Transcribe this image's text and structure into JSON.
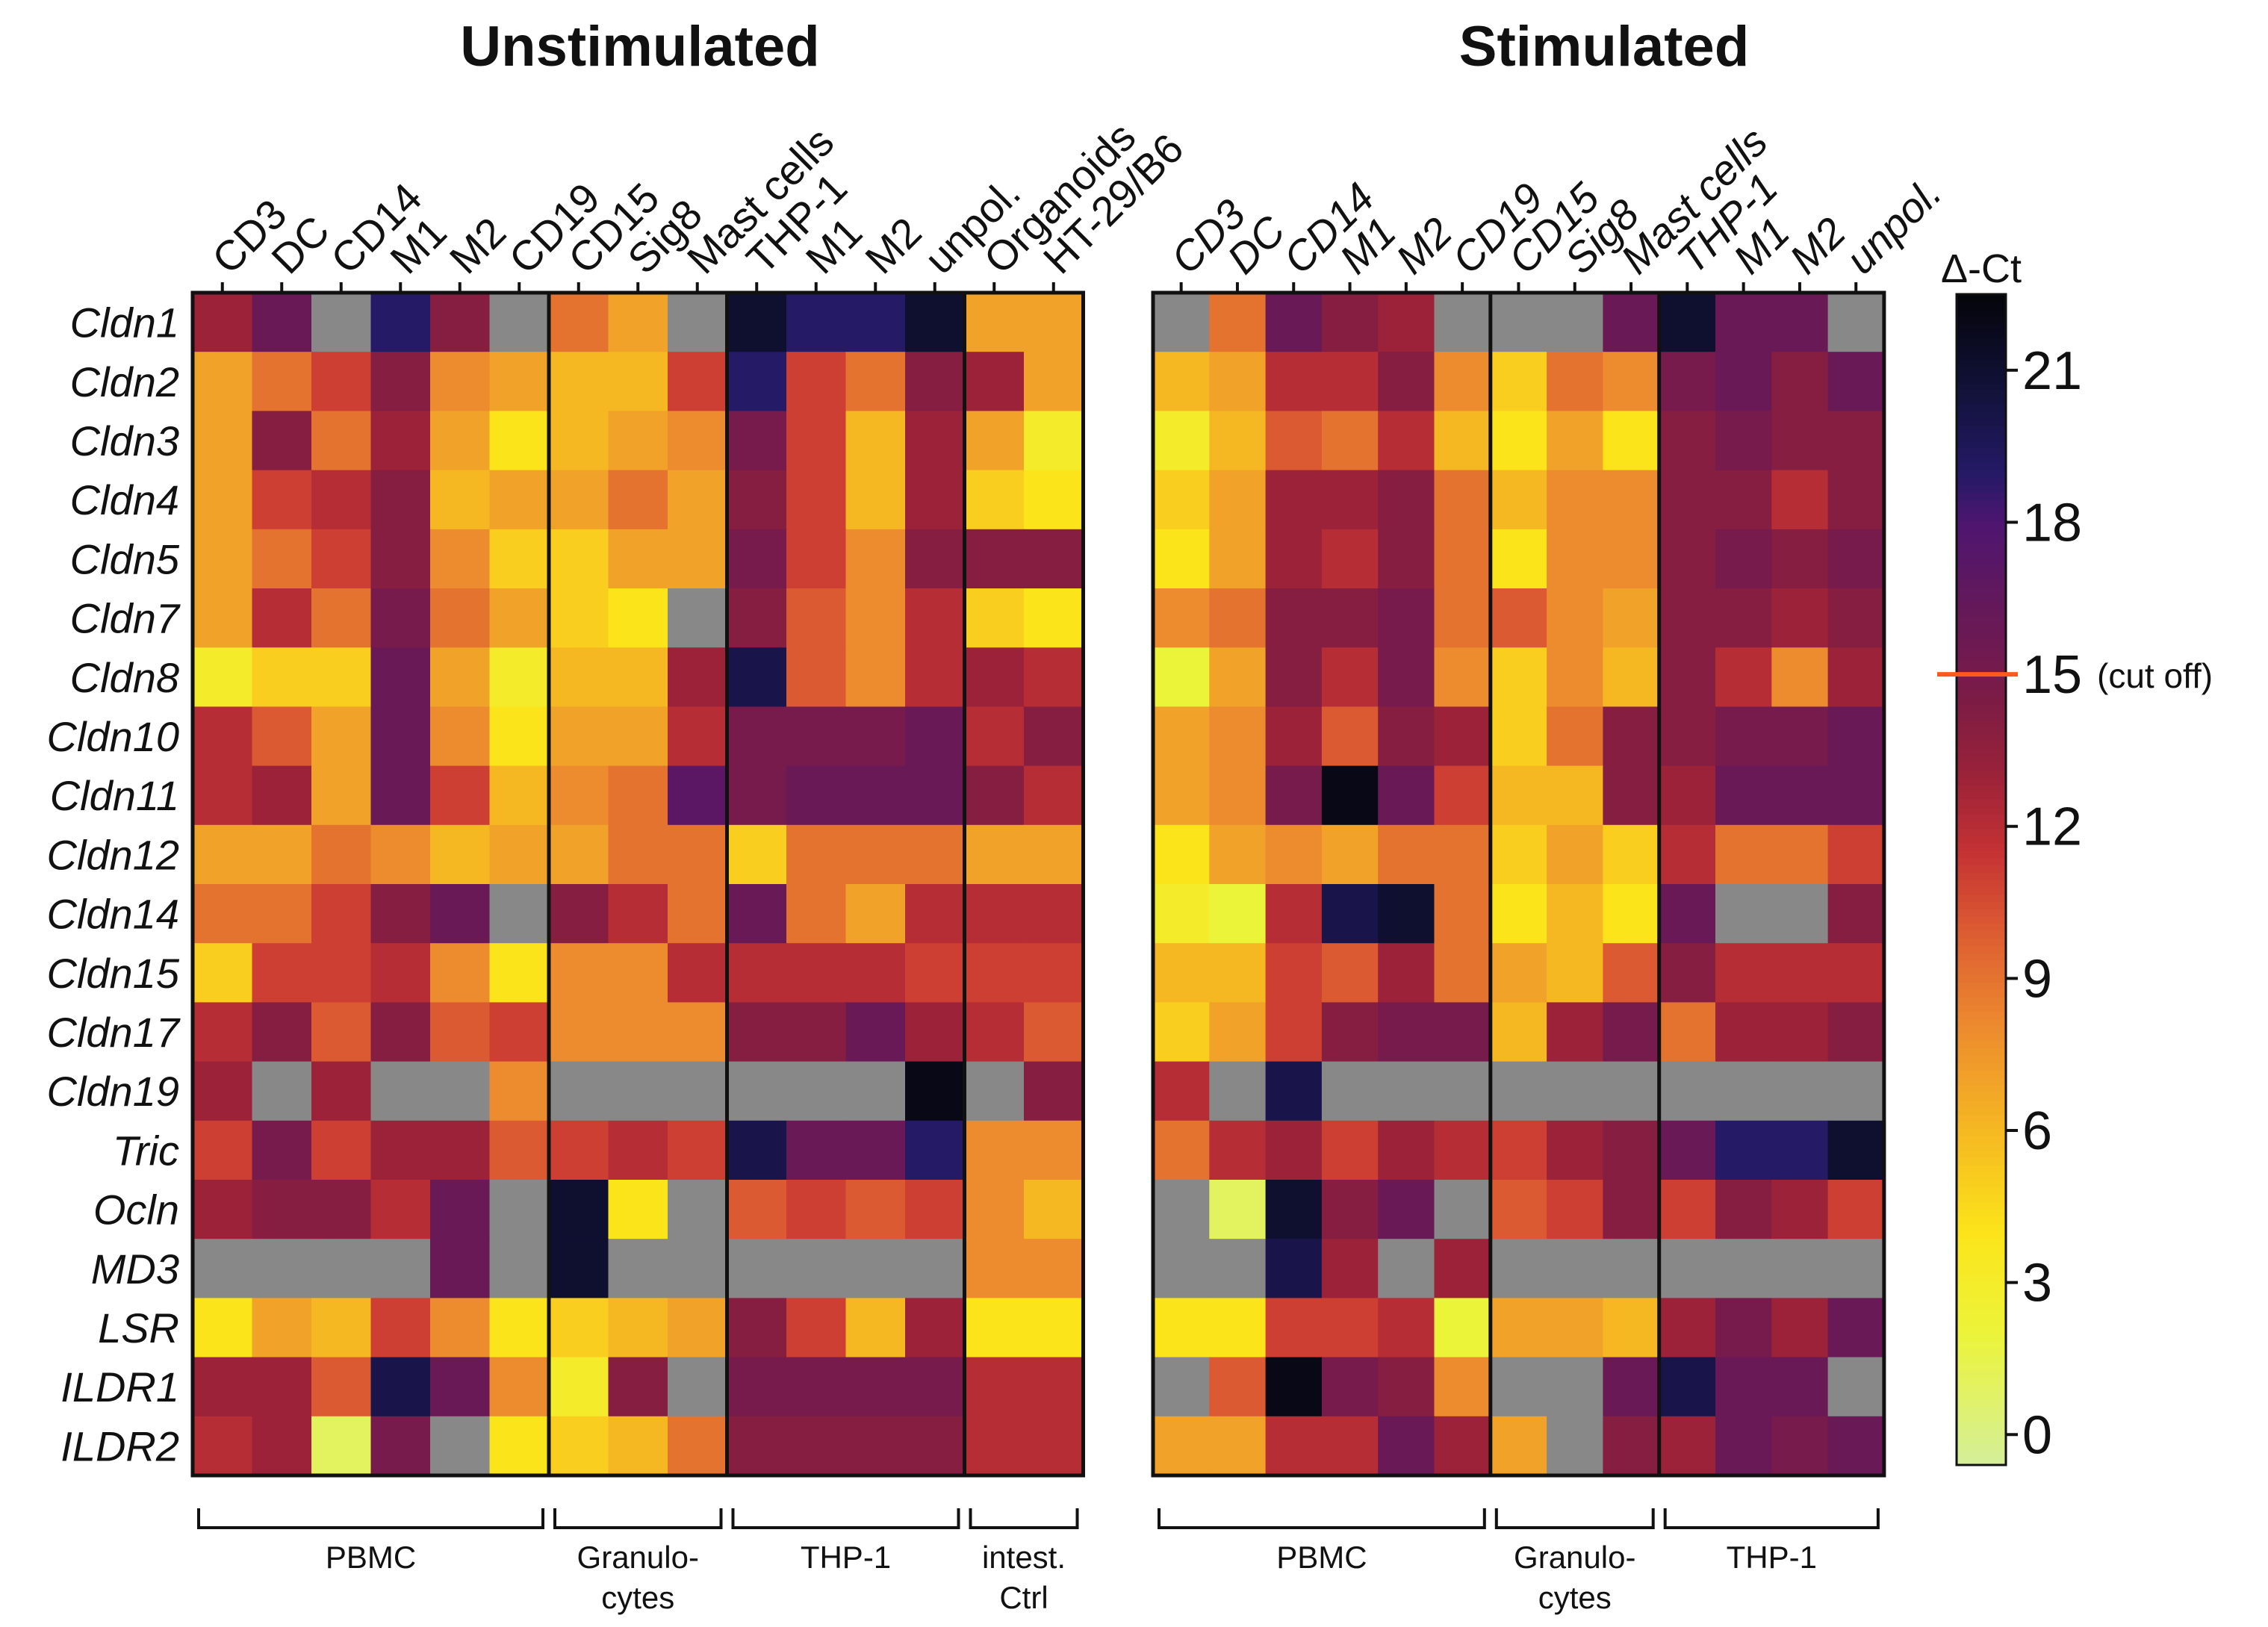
{
  "chart_data": {
    "type": "heatmap",
    "rows": [
      "Cldn1",
      "Cldn2",
      "Cldn3",
      "Cldn4",
      "Cldn5",
      "Cldn7",
      "Cldn8",
      "Cldn10",
      "Cldn11",
      "Cldn12",
      "Cldn14",
      "Cldn15",
      "Cldn17",
      "Cldn19",
      "Tric",
      "Ocln",
      "MD3",
      "LSR",
      "ILDR1",
      "ILDR2"
    ],
    "panels": [
      {
        "title": "Unstimulated",
        "columns": [
          "CD3",
          "DC",
          "CD14",
          "M1",
          "M2",
          "CD19",
          "CD15",
          "Sig8",
          "Mast cells",
          "THP-1",
          "M1",
          "M2",
          "unpol.",
          "Organoids",
          "HT-29/B6"
        ],
        "groups": [
          {
            "label": "PBMC",
            "span": [
              0,
              5
            ]
          },
          {
            "label_lines": [
              "Granulo-",
              "cytes"
            ],
            "span": [
              6,
              8
            ]
          },
          {
            "label": "THP-1",
            "span": [
              9,
              12
            ]
          },
          {
            "label_lines": [
              "intest.",
              "Ctrl"
            ],
            "span": [
              13,
              14
            ]
          }
        ],
        "values": [
          [
            13,
            16,
            null,
            19,
            14,
            null,
            9,
            7,
            null,
            21,
            19,
            19,
            21,
            7,
            7
          ],
          [
            7,
            9,
            11,
            14,
            8,
            7,
            6,
            6,
            11,
            19,
            11,
            9,
            14,
            13,
            7
          ],
          [
            7,
            14,
            9,
            13,
            7,
            4,
            6,
            7,
            8,
            15,
            11,
            6,
            13,
            7,
            3
          ],
          [
            7,
            11,
            12,
            14,
            6,
            7,
            7,
            9,
            7,
            14,
            11,
            6,
            13,
            5,
            4
          ],
          [
            7,
            9,
            11,
            14,
            8,
            5,
            5,
            7,
            7,
            15,
            11,
            8,
            14,
            14,
            14
          ],
          [
            7,
            12,
            9,
            15,
            9,
            7,
            5,
            4,
            null,
            14,
            10,
            8,
            12,
            5,
            4
          ],
          [
            3,
            5,
            5,
            16,
            7,
            3,
            6,
            6,
            13,
            20,
            10,
            8,
            12,
            13,
            12
          ],
          [
            12,
            10,
            7,
            16,
            8,
            4,
            7,
            7,
            12,
            15,
            15,
            15,
            16,
            12,
            14
          ],
          [
            12,
            13,
            7,
            16,
            11,
            6,
            8,
            9,
            17,
            15,
            16,
            16,
            16,
            14,
            12
          ],
          [
            7,
            7,
            9,
            8,
            6,
            7,
            7,
            9,
            9,
            5,
            9,
            9,
            9,
            7,
            7
          ],
          [
            9,
            9,
            11,
            14,
            16,
            null,
            14,
            12,
            9,
            16,
            9,
            7,
            12,
            12,
            12
          ],
          [
            5,
            11,
            11,
            12,
            8,
            4,
            8,
            8,
            12,
            12,
            12,
            12,
            11,
            11,
            11
          ],
          [
            12,
            14,
            10,
            14,
            10,
            11,
            8,
            8,
            8,
            14,
            14,
            16,
            13,
            12,
            10
          ],
          [
            13,
            null,
            13,
            null,
            null,
            8,
            null,
            null,
            null,
            null,
            null,
            null,
            22,
            null,
            14
          ],
          [
            11,
            15,
            11,
            13,
            13,
            10,
            11,
            12,
            11,
            20,
            16,
            16,
            19,
            8,
            8
          ],
          [
            13,
            14,
            14,
            12,
            16,
            null,
            21,
            4,
            null,
            10,
            11,
            10,
            11,
            8,
            6
          ],
          [
            null,
            null,
            null,
            null,
            16,
            null,
            21,
            null,
            null,
            null,
            null,
            null,
            null,
            8,
            8
          ],
          [
            4,
            7,
            6,
            11,
            8,
            4,
            5,
            6,
            7,
            14,
            11,
            6,
            13,
            4,
            4
          ],
          [
            13,
            13,
            10,
            20,
            16,
            8,
            3,
            14,
            null,
            15,
            15,
            15,
            15,
            12,
            12
          ],
          [
            12,
            13,
            1,
            15,
            null,
            4,
            5,
            6,
            9,
            14,
            14,
            14,
            14,
            12,
            12
          ]
        ]
      },
      {
        "title": "Stimulated",
        "columns": [
          "CD3",
          "DC",
          "CD14",
          "M1",
          "M2",
          "CD19",
          "CD15",
          "Sig8",
          "Mast cells",
          "THP-1",
          "M1",
          "M2",
          "unpol."
        ],
        "groups": [
          {
            "label": "PBMC",
            "span": [
              0,
              5
            ]
          },
          {
            "label_lines": [
              "Granulo-",
              "cytes"
            ],
            "span": [
              6,
              8
            ]
          },
          {
            "label": "THP-1",
            "span": [
              9,
              12
            ]
          }
        ],
        "values": [
          [
            null,
            9,
            16,
            14,
            13,
            null,
            null,
            null,
            16,
            21,
            16,
            16,
            null
          ],
          [
            6,
            7,
            12,
            12,
            14,
            8,
            5,
            9,
            8,
            15,
            16,
            14,
            16
          ],
          [
            3,
            6,
            10,
            9,
            12,
            6,
            4,
            7,
            4,
            14,
            15,
            14,
            14
          ],
          [
            5,
            7,
            13,
            13,
            14,
            9,
            6,
            8,
            8,
            14,
            14,
            12,
            14
          ],
          [
            4,
            7,
            13,
            12,
            14,
            9,
            4,
            8,
            8,
            14,
            15,
            14,
            15
          ],
          [
            8,
            9,
            14,
            14,
            15,
            9,
            10,
            8,
            7,
            14,
            14,
            13,
            14
          ],
          [
            2,
            7,
            14,
            12,
            15,
            8,
            5,
            8,
            6,
            14,
            12,
            8,
            13
          ],
          [
            7,
            8,
            13,
            10,
            14,
            13,
            5,
            9,
            14,
            14,
            15,
            15,
            16
          ],
          [
            7,
            8,
            15,
            22,
            16,
            11,
            6,
            6,
            14,
            13,
            16,
            16,
            16
          ],
          [
            4,
            7,
            8,
            7,
            9,
            9,
            5,
            7,
            5,
            12,
            9,
            9,
            11
          ],
          [
            3,
            2,
            12,
            20,
            21,
            9,
            4,
            6,
            4,
            16,
            null,
            null,
            14
          ],
          [
            6,
            6,
            11,
            10,
            13,
            9,
            7,
            6,
            10,
            14,
            12,
            12,
            12
          ],
          [
            5,
            7,
            11,
            14,
            15,
            15,
            6,
            13,
            15,
            9,
            13,
            13,
            14
          ],
          [
            12,
            null,
            20,
            null,
            null,
            null,
            null,
            null,
            null,
            null,
            null,
            null,
            null
          ],
          [
            9,
            12,
            13,
            11,
            13,
            12,
            11,
            13,
            14,
            16,
            19,
            19,
            21
          ],
          [
            null,
            1,
            21,
            14,
            16,
            null,
            10,
            11,
            14,
            11,
            14,
            13,
            11
          ],
          [
            null,
            null,
            20,
            13,
            null,
            13,
            null,
            null,
            null,
            null,
            null,
            null,
            null
          ],
          [
            4,
            4,
            11,
            11,
            12,
            2,
            7,
            7,
            6,
            13,
            15,
            13,
            16
          ],
          [
            null,
            10,
            22,
            15,
            14,
            8,
            null,
            null,
            16,
            20,
            16,
            16,
            null
          ],
          [
            7,
            7,
            12,
            12,
            16,
            13,
            7,
            null,
            14,
            13,
            16,
            15,
            16
          ]
        ]
      }
    ],
    "colorbar": {
      "title": "Δ-Ct",
      "ticks": [
        0,
        3,
        6,
        9,
        12,
        15,
        18,
        21
      ],
      "range": [
        -0.6,
        22.5
      ],
      "cutoff": 15,
      "cutoff_label": "(cut off)",
      "cutoff_color": "#ff5a1e",
      "missing_color": "#888888",
      "stops": [
        {
          "v": -0.6,
          "c": "#d4ef9a"
        },
        {
          "v": 2,
          "c": "#ecf43a"
        },
        {
          "v": 4,
          "c": "#fce41a"
        },
        {
          "v": 6,
          "c": "#f5b822"
        },
        {
          "v": 8,
          "c": "#ed8c2e"
        },
        {
          "v": 10,
          "c": "#dc5a32"
        },
        {
          "v": 11.5,
          "c": "#c53233"
        },
        {
          "v": 13,
          "c": "#9b2239"
        },
        {
          "v": 14.5,
          "c": "#7c1c45"
        },
        {
          "v": 16.5,
          "c": "#62185c"
        },
        {
          "v": 18,
          "c": "#4d1670"
        },
        {
          "v": 19,
          "c": "#241a66"
        },
        {
          "v": 20.5,
          "c": "#13133d"
        },
        {
          "v": 22.5,
          "c": "#04040a"
        }
      ]
    }
  }
}
